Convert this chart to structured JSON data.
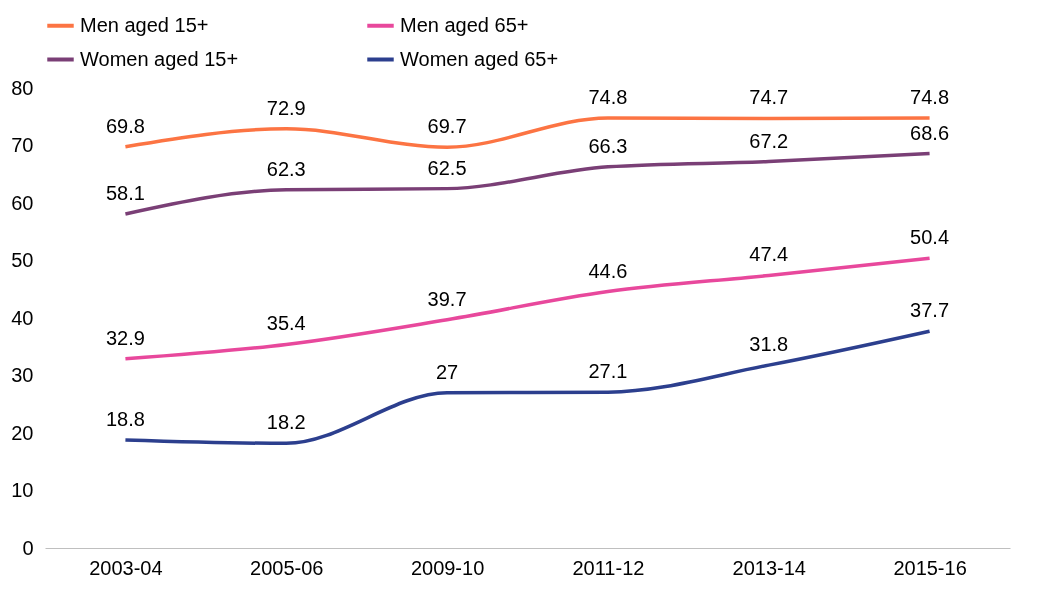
{
  "chart_data": {
    "type": "line",
    "categories": [
      "2003-04",
      "2005-06",
      "2009-10",
      "2011-12",
      "2013-14",
      "2015-16"
    ],
    "series": [
      {
        "name": "Men aged 15+",
        "color": "#fc7443",
        "values": [
          69.8,
          72.9,
          69.7,
          74.8,
          74.7,
          74.8
        ]
      },
      {
        "name": "Men aged 65+",
        "color": "#e8489c",
        "values": [
          32.9,
          35.4,
          39.7,
          44.6,
          47.4,
          50.4
        ]
      },
      {
        "name": "Women aged 15+",
        "color": "#7a3f76",
        "values": [
          58.1,
          62.3,
          62.5,
          66.3,
          67.2,
          68.6
        ]
      },
      {
        "name": "Women aged 65+",
        "color": "#2c3f8e",
        "values": [
          18.8,
          18.2,
          27,
          27.1,
          31.8,
          37.7
        ]
      }
    ],
    "ylim": [
      0,
      80
    ],
    "yticks": [
      0,
      10,
      20,
      30,
      40,
      50,
      60,
      70,
      80
    ],
    "grid": false,
    "legend": "top",
    "data_labels": true,
    "marker": "none",
    "line_style": "solid"
  }
}
